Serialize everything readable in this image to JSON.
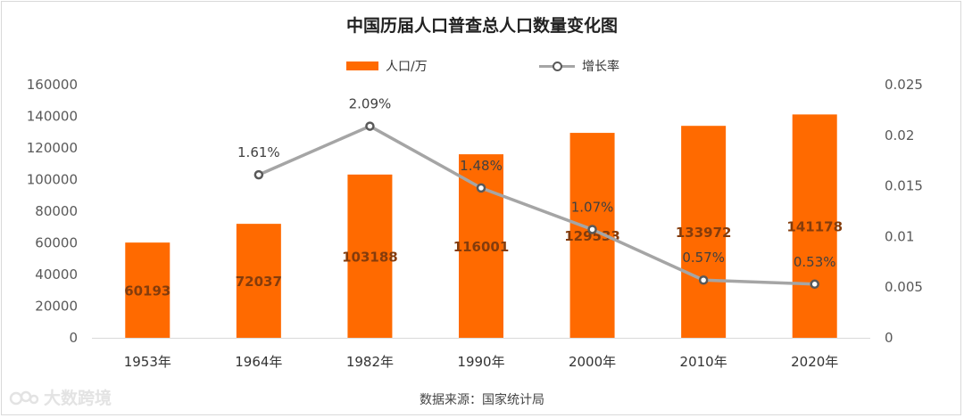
{
  "chart_data": {
    "type": "bar",
    "title": "中国历届人口普查总人口数量变化图",
    "source": "数据来源：国家统计局",
    "watermark": "大数跨境",
    "categories": [
      "1953年",
      "1964年",
      "1982年",
      "1990年",
      "2000年",
      "2010年",
      "2020年"
    ],
    "series": [
      {
        "name": "人口/万",
        "type": "bar",
        "axis": "left",
        "color": "#ff6a00",
        "values": [
          60193,
          72037,
          103188,
          116001,
          129533,
          133972,
          141178
        ],
        "labels": [
          "60193",
          "72037",
          "103188",
          "116001",
          "129533",
          "133972",
          "141178"
        ]
      },
      {
        "name": "增长率",
        "type": "line",
        "axis": "right",
        "color": "#a5a5a5",
        "marker_color": "#595959",
        "values": [
          null,
          0.0161,
          0.0209,
          0.0148,
          0.0107,
          0.0057,
          0.0053
        ],
        "labels": [
          null,
          "1.61%",
          "2.09%",
          "1.48%",
          "1.07%",
          "0.57%",
          "0.53%"
        ]
      }
    ],
    "y_left": {
      "min": 0,
      "max": 160000,
      "ticks": [
        "0",
        "20000",
        "40000",
        "60000",
        "80000",
        "100000",
        "120000",
        "140000",
        "160000"
      ]
    },
    "y_right": {
      "min": 0,
      "max": 0.025,
      "ticks": [
        "0",
        "0.005",
        "0.01",
        "0.015",
        "0.02",
        "0.025"
      ]
    },
    "legend_position": "top-center",
    "grid": false
  }
}
